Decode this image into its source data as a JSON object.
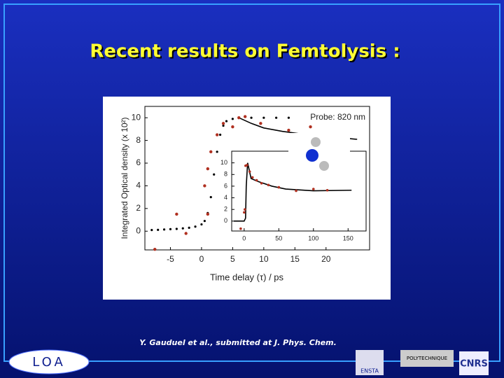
{
  "slide": {
    "title": "Recent results on Femtolysis :",
    "citation": "Y. Gauduel et al., submitted at J. Phys. Chem.",
    "logos": [
      "LOA",
      "ENSTA",
      "POLYTECHNIQUE",
      "CNRS"
    ]
  },
  "chart_data": [
    {
      "type": "line",
      "xlabel": "Time delay (τ)  /  ps",
      "ylabel": "Integrated Optical density (x 10²)",
      "annotation": "Probe: 820 nm",
      "xlim": [
        -9.1,
        27
      ],
      "ylim": [
        -1.65,
        11
      ],
      "xticks": [
        -5,
        0,
        5,
        10,
        15,
        20
      ],
      "yticks": [
        0,
        2,
        4,
        6,
        8,
        10
      ],
      "series": [
        {
          "style": "points",
          "color": "#000000",
          "marker_size": 1.6,
          "x": [
            -8,
            -7,
            -6,
            -5,
            -4,
            -3,
            -2,
            -1,
            0,
            0.5,
            1,
            1.5,
            2,
            2.5,
            3,
            3.5,
            4,
            5,
            6,
            8,
            10,
            12,
            14
          ],
          "values": [
            0.1,
            0.12,
            0.15,
            0.18,
            0.2,
            0.25,
            0.3,
            0.4,
            0.6,
            0.9,
            1.6,
            3,
            5,
            7,
            8.5,
            9.3,
            9.7,
            9.9,
            10,
            10,
            10,
            10,
            10
          ]
        },
        {
          "style": "line",
          "color": "#000000",
          "x": [
            6,
            8,
            10,
            13,
            17,
            21,
            25
          ],
          "values": [
            10,
            9.5,
            9.1,
            8.8,
            8.5,
            8.3,
            8.1
          ]
        },
        {
          "style": "points",
          "color": "#b03020",
          "marker_size": 2.2,
          "x": [
            -7.5,
            -4,
            -2.5,
            1,
            0.5,
            1,
            1.5,
            2.5,
            3.5,
            5,
            6,
            7,
            9.5,
            14,
            17,
            17.5
          ],
          "values": [
            -1.6,
            1.5,
            -0.2,
            1.5,
            4,
            5.5,
            7,
            8.5,
            9.5,
            9.2,
            10,
            10.1,
            9.5,
            8.9,
            8.5,
            9.2
          ]
        }
      ]
    },
    {
      "type": "line",
      "xlim": [
        -18,
        176
      ],
      "ylim": [
        -1.7,
        12
      ],
      "xticks": [
        0,
        50,
        100,
        150
      ],
      "yticks": [
        0,
        2,
        4,
        6,
        8,
        10
      ],
      "series": [
        {
          "style": "line",
          "color": "#000000",
          "x": [
            -15,
            0,
            2,
            3,
            5,
            10,
            20,
            40,
            60,
            100,
            155
          ],
          "values": [
            0,
            0,
            0.5,
            6,
            10,
            7.3,
            6.8,
            6,
            5.5,
            5.2,
            5.3
          ]
        },
        {
          "style": "points",
          "color": "#b03020",
          "marker_size": 1.8,
          "x": [
            -5,
            0,
            1,
            2,
            4,
            8,
            12,
            18,
            25,
            35,
            50,
            75,
            100,
            120
          ],
          "values": [
            -1.3,
            1.5,
            2,
            9.5,
            9.6,
            8.5,
            7.5,
            7,
            6.5,
            6.2,
            5.8,
            5.2,
            5.5,
            5.3
          ]
        }
      ]
    }
  ]
}
